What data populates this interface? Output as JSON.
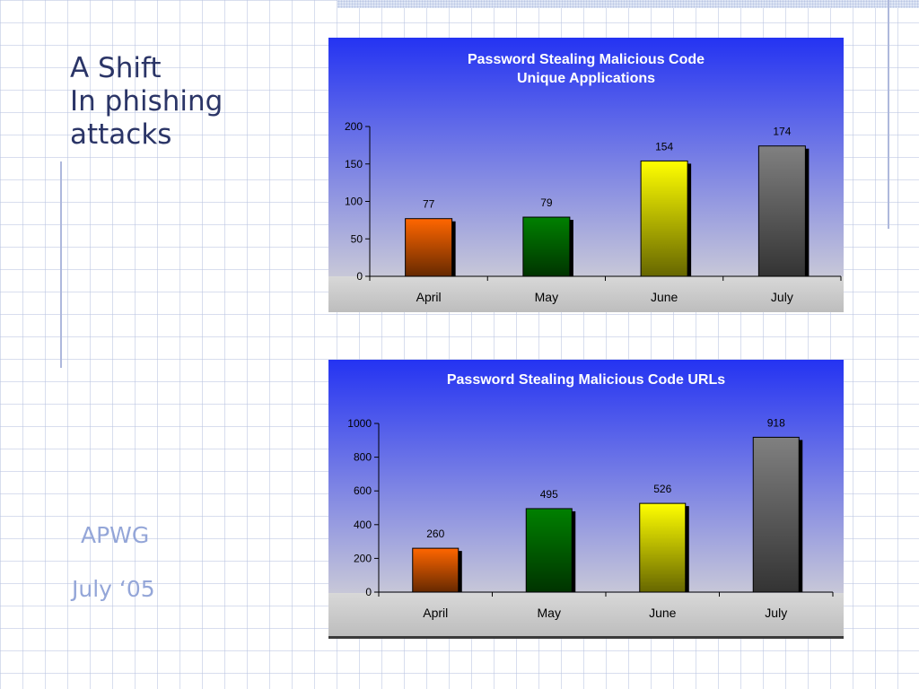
{
  "slide": {
    "title_lines": [
      "A Shift",
      "In phishing",
      "attacks"
    ],
    "org": "APWG",
    "date": "July ‘05"
  },
  "colors": {
    "title_text": "#2b3567",
    "footer_text": "#94a6d8",
    "plot_top": "#2433f2",
    "plot_bottom": "#c8c8d8",
    "bar_april": "#ff6600",
    "bar_may": "#008000",
    "bar_june": "#ffff00",
    "bar_july": "#808080"
  },
  "chart_data": [
    {
      "type": "bar",
      "title": [
        "Password Stealing Malicious Code",
        "Unique Applications"
      ],
      "categories": [
        "April",
        "May",
        "June",
        "July"
      ],
      "values": [
        77,
        79,
        154,
        174
      ],
      "ylim": [
        0,
        200
      ],
      "yticks": [
        0,
        50,
        100,
        150,
        200
      ],
      "data_labels": true,
      "grid": false,
      "legend": "none"
    },
    {
      "type": "bar",
      "title": [
        "Password Stealing Malicious Code URLs"
      ],
      "categories": [
        "April",
        "May",
        "June",
        "July"
      ],
      "values": [
        260,
        495,
        526,
        918
      ],
      "ylim": [
        0,
        1000
      ],
      "yticks": [
        0,
        200,
        400,
        600,
        800,
        1000
      ],
      "data_labels": true,
      "grid": false,
      "legend": "none"
    }
  ]
}
